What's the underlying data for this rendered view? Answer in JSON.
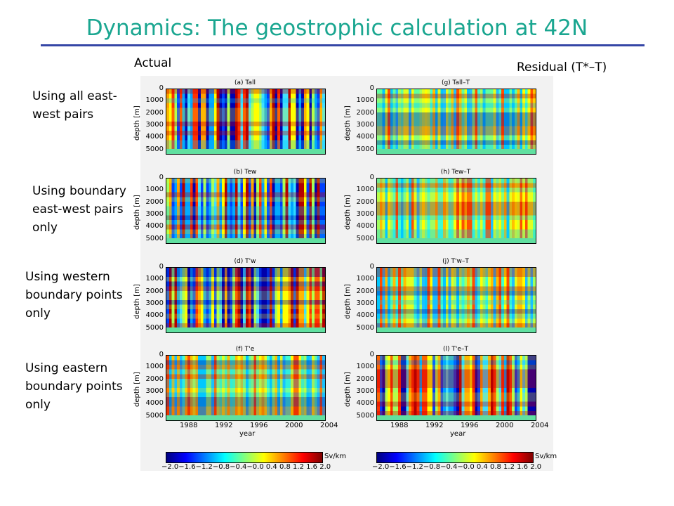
{
  "header": {
    "title": "Dynamics: The geostrophic calculation at 42N",
    "col_actual": "Actual",
    "col_residual": "Residual (T*–T)"
  },
  "rows": [
    {
      "label": "Using all east-\nwest pairs",
      "left_title": "(a) Tall",
      "right_title": "(g) Tall–T"
    },
    {
      "label": "Using boundary\neast-west pairs\nonly",
      "left_title": "(b) Tew",
      "right_title": "(h) Tew–T"
    },
    {
      "label": "Using western\nboundary points\nonly",
      "left_title": "(d) T'w",
      "right_title": "(j) T'w–T"
    },
    {
      "label": "Using eastern\nboundary points\nonly",
      "left_title": "(f) T'e",
      "right_title": "(l) T'e–T"
    }
  ],
  "axes": {
    "ylabel": "depth [m]",
    "yticks": [
      "0",
      "1000",
      "2000",
      "3000",
      "4000",
      "5000"
    ],
    "xlabel": "year",
    "xticks": [
      "1988",
      "1992",
      "1996",
      "2000",
      "2004"
    ]
  },
  "colorbar": {
    "unit": "Sv/km",
    "ticks": "−2.0−1.6−1.2−0.8−0.4−0.0 0.4  0.8  1.2  1.6  2.0"
  },
  "colors": {
    "title": "#1aa690",
    "rule": "#3546a6"
  }
}
